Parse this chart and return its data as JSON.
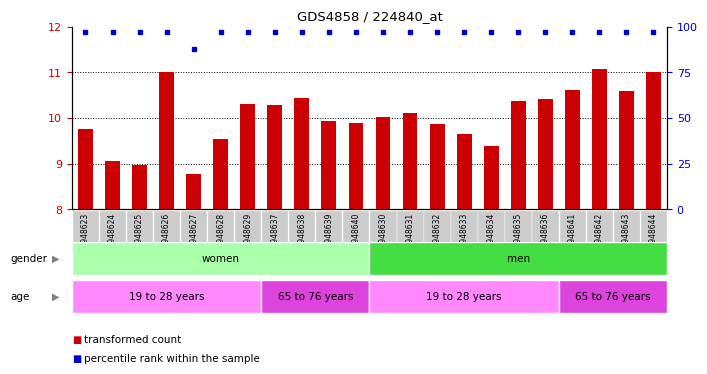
{
  "title": "GDS4858 / 224840_at",
  "samples": [
    "GSM948623",
    "GSM948624",
    "GSM948625",
    "GSM948626",
    "GSM948627",
    "GSM948628",
    "GSM948629",
    "GSM948637",
    "GSM948638",
    "GSM948639",
    "GSM948640",
    "GSM948630",
    "GSM948631",
    "GSM948632",
    "GSM948633",
    "GSM948634",
    "GSM948635",
    "GSM948636",
    "GSM948641",
    "GSM948642",
    "GSM948643",
    "GSM948644"
  ],
  "transformed_count": [
    9.75,
    9.05,
    8.98,
    11.0,
    8.78,
    9.55,
    10.3,
    10.28,
    10.45,
    9.93,
    9.89,
    10.02,
    10.12,
    9.87,
    9.65,
    9.38,
    10.38,
    10.42,
    10.62,
    11.08,
    10.6,
    11.0
  ],
  "percentile_rank": [
    97,
    97,
    97,
    97,
    88,
    97,
    97,
    97,
    97,
    97,
    97,
    97,
    97,
    97,
    97,
    97,
    97,
    97,
    97,
    97,
    97,
    97
  ],
  "bar_color": "#cc0000",
  "dot_color": "#0000cc",
  "ylim_left": [
    8,
    12
  ],
  "ylim_right": [
    0,
    100
  ],
  "yticks_left": [
    8,
    9,
    10,
    11,
    12
  ],
  "yticks_right": [
    0,
    25,
    50,
    75,
    100
  ],
  "gender_groups": [
    {
      "label": "women",
      "start": 0,
      "end": 11,
      "color": "#aaffaa"
    },
    {
      "label": "men",
      "start": 11,
      "end": 22,
      "color": "#44dd44"
    }
  ],
  "age_groups": [
    {
      "label": "19 to 28 years",
      "start": 0,
      "end": 7,
      "color": "#ff88ff"
    },
    {
      "label": "65 to 76 years",
      "start": 7,
      "end": 11,
      "color": "#dd44dd"
    },
    {
      "label": "19 to 28 years",
      "start": 11,
      "end": 18,
      "color": "#ff88ff"
    },
    {
      "label": "65 to 76 years",
      "start": 18,
      "end": 22,
      "color": "#dd44dd"
    }
  ],
  "background_color": "#ffffff",
  "tick_color_left": "#cc0000",
  "tick_color_right": "#0000cc",
  "xtick_bg_color": "#cccccc",
  "bar_width": 0.55,
  "n_samples": 22,
  "legend_bar_label": "transformed count",
  "legend_dot_label": "percentile rank within the sample",
  "gender_label": "gender",
  "age_label": "age"
}
